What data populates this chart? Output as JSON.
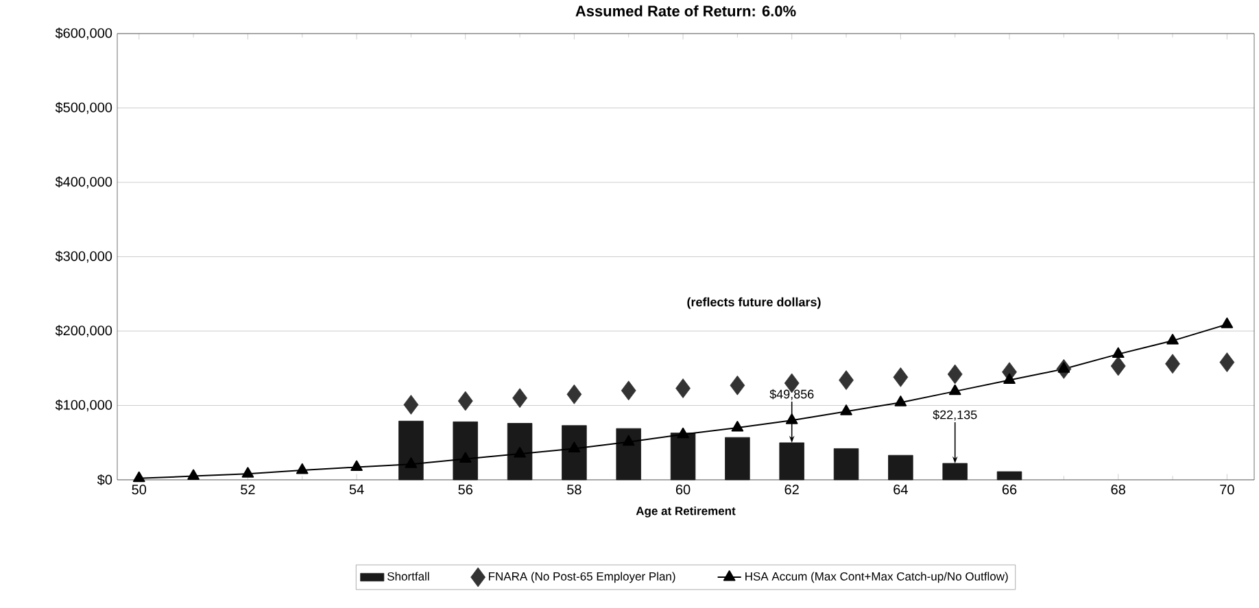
{
  "chart_data": {
    "type": "bar",
    "title": "Assumed Rate of Return: 6.0%",
    "xlabel": "Age at Retirement",
    "x": [
      50,
      51,
      52,
      53,
      54,
      55,
      56,
      57,
      58,
      59,
      60,
      61,
      62,
      63,
      64,
      65,
      66,
      67,
      68,
      69,
      70
    ],
    "series": [
      {
        "name": "Shortfall",
        "color": "#1a1a1a",
        "values": [
          null,
          null,
          null,
          null,
          null,
          79000,
          78000,
          76000,
          73000,
          69000,
          63000,
          57000,
          49856,
          42000,
          33000,
          22135,
          11000,
          null,
          null,
          null,
          null
        ]
      },
      {
        "name": "FNARA (No Post-65 Employer Plan)",
        "type": "scatter",
        "marker": "diamond",
        "color": "#333333",
        "values": [
          null,
          null,
          null,
          null,
          null,
          101000,
          106000,
          110000,
          115000,
          120000,
          123000,
          127000,
          130000,
          134000,
          138000,
          142000,
          145000,
          149000,
          153000,
          156000,
          158000
        ]
      },
      {
        "name": "HSA Accum (Max Cont+Max Catch-up/No Outflow)",
        "type": "line",
        "marker": "triangle",
        "color": "#000000",
        "values": [
          2000,
          5000,
          8000,
          13000,
          17000,
          21000,
          28000,
          35000,
          42000,
          51000,
          61000,
          70000,
          80000,
          92000,
          104000,
          119000,
          134000,
          149000,
          169000,
          187000,
          209000
        ]
      }
    ],
    "xlim": [
      49.6,
      70.5
    ],
    "xticks": [
      50,
      52,
      54,
      56,
      58,
      60,
      62,
      64,
      66,
      68,
      70
    ],
    "ylim": [
      0,
      600000
    ],
    "yticks": [
      {
        "value": 0,
        "label": "$0"
      },
      {
        "value": 100000,
        "label": "$100,000"
      },
      {
        "value": 200000,
        "label": "$200,000"
      },
      {
        "value": 300000,
        "label": "$300,000"
      },
      {
        "value": 400000,
        "label": "$400,000"
      },
      {
        "value": 500000,
        "label": "$500,000"
      },
      {
        "value": 600000,
        "label": "$600,000"
      }
    ],
    "grid": "y",
    "legend": "bottom",
    "annotations": [
      "(reflects future dollars)",
      {
        "text": "$49,856",
        "x": 62,
        "y": 49856
      },
      {
        "text": "$22,135",
        "x": 65,
        "y": 22135
      }
    ]
  }
}
